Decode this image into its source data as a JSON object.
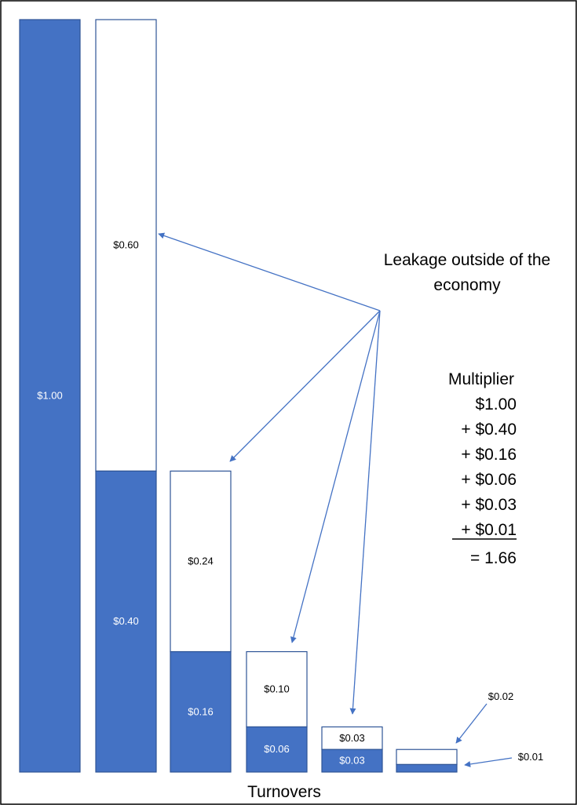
{
  "chart_data": {
    "type": "bar",
    "stacked": true,
    "xlabel": "Turnovers",
    "ylabel": "",
    "title": "",
    "grid": false,
    "legend": "none",
    "ylim": [
      0,
      1.0
    ],
    "colors": {
      "retained": "#4472C4",
      "leakage": "#ffffff",
      "outline": "#2F5597",
      "arrow": "#4472C4"
    },
    "bars": [
      {
        "retained": 1.0,
        "retained_label": "$1.00",
        "leakage": 0.0,
        "leakage_label": ""
      },
      {
        "retained": 0.4,
        "retained_label": "$0.40",
        "leakage": 0.6,
        "leakage_label": "$0.60"
      },
      {
        "retained": 0.16,
        "retained_label": "$0.16",
        "leakage": 0.24,
        "leakage_label": "$0.24"
      },
      {
        "retained": 0.06,
        "retained_label": "$0.06",
        "leakage": 0.1,
        "leakage_label": "$0.10"
      },
      {
        "retained": 0.03,
        "retained_label": "$0.03",
        "leakage": 0.03,
        "leakage_label": "$0.03"
      },
      {
        "retained": 0.01,
        "retained_label": "",
        "leakage": 0.02,
        "leakage_label": ""
      }
    ],
    "outside_labels": {
      "leakage_last": "$0.02",
      "retained_last": "$0.01"
    },
    "annotation": {
      "leakage_line1": "Leakage outside of the",
      "leakage_line2": "economy"
    },
    "multiplier": {
      "title": "Multiplier",
      "lines": [
        "$1.00",
        "+ $0.40",
        "+ $0.16",
        "+ $0.06",
        "+ $0.03",
        "+ $0.01"
      ],
      "result": "= 1.66"
    }
  }
}
